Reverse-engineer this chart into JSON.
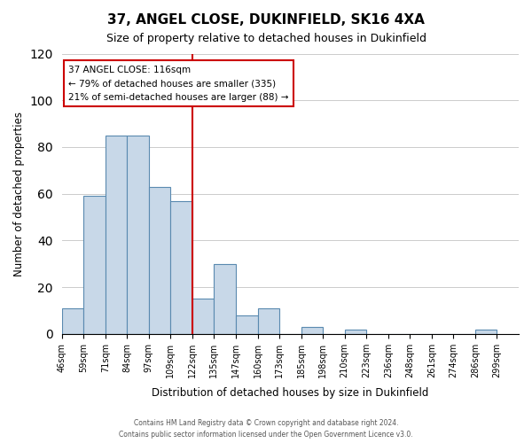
{
  "title": "37, ANGEL CLOSE, DUKINFIELD, SK16 4XA",
  "subtitle": "Size of property relative to detached houses in Dukinfield",
  "xlabel": "Distribution of detached houses by size in Dukinfield",
  "ylabel": "Number of detached properties",
  "footer_lines": [
    "Contains HM Land Registry data © Crown copyright and database right 2024.",
    "Contains public sector information licensed under the Open Government Licence v3.0."
  ],
  "bin_labels": [
    "46sqm",
    "59sqm",
    "71sqm",
    "84sqm",
    "97sqm",
    "109sqm",
    "122sqm",
    "135sqm",
    "147sqm",
    "160sqm",
    "173sqm",
    "185sqm",
    "198sqm",
    "210sqm",
    "223sqm",
    "236sqm",
    "248sqm",
    "261sqm",
    "274sqm",
    "286sqm",
    "299sqm"
  ],
  "bar_values": [
    11,
    59,
    85,
    85,
    63,
    57,
    15,
    30,
    8,
    11,
    0,
    3,
    0,
    2,
    0,
    0,
    0,
    0,
    0,
    2
  ],
  "bar_color": "#c8d8e8",
  "bar_edge_color": "#5a8ab0",
  "ylim": [
    0,
    120
  ],
  "yticks": [
    0,
    20,
    40,
    60,
    80,
    100,
    120
  ],
  "vline_x_index": 6,
  "annotation_title": "37 ANGEL CLOSE: 116sqm",
  "annotation_line1": "← 79% of detached houses are smaller (335)",
  "annotation_line2": "21% of semi-detached houses are larger (88) →",
  "vline_color": "#cc0000",
  "grid_color": "#cccccc"
}
